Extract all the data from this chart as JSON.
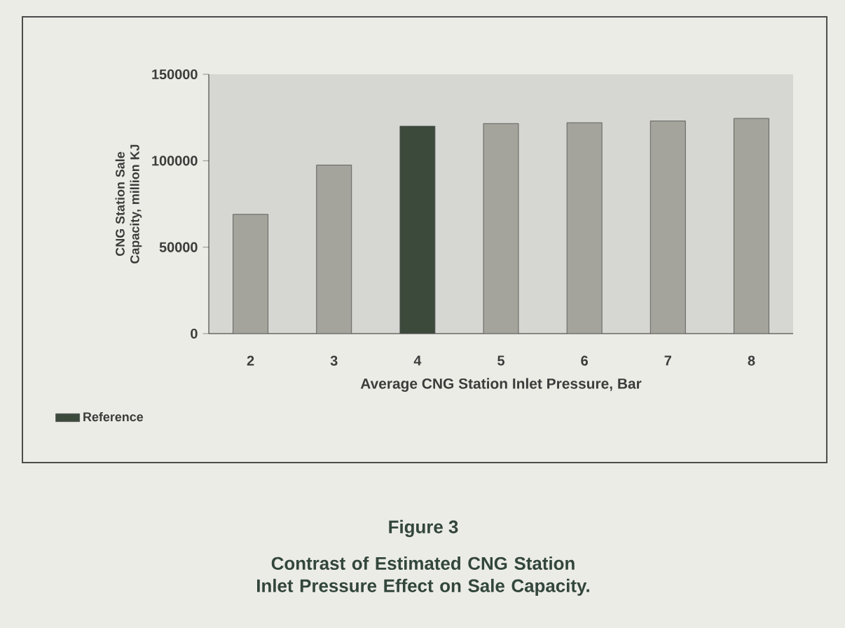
{
  "chart_data": {
    "type": "bar",
    "title": "Figure 3",
    "subtitle": "Contrast of  Estimated CNG Station Inlet Pressure Effect on Sale Capacity.",
    "xlabel": "Average CNG Station Inlet Pressure, Bar",
    "ylabel": "CNG Station Sale Capacity, million KJ",
    "categories": [
      "2",
      "3",
      "4",
      "5",
      "6",
      "7",
      "8"
    ],
    "series": [
      {
        "color": "#a4a49c",
        "values": [
          69000,
          97500,
          null,
          121500,
          122000,
          123000,
          124500
        ]
      },
      {
        "name": "Reference",
        "color": "#3c4a3c",
        "values": [
          null,
          null,
          120000,
          null,
          null,
          null,
          null
        ]
      }
    ],
    "ylim": [
      0,
      150000
    ],
    "yticks": [
      0,
      50000,
      100000,
      150000
    ],
    "legend": "bottom left"
  }
}
